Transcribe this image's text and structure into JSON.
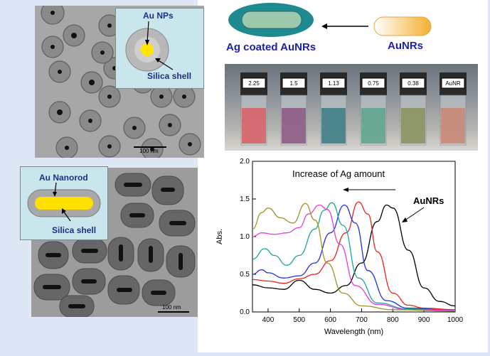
{
  "tem_top": {
    "inset_labels": [
      "Au NPs",
      "Silica shell"
    ],
    "scale_label": "100 nm"
  },
  "tem_bottom": {
    "inset_labels": [
      "Au Nanorod",
      "Silica shell"
    ],
    "scale_label": "100 nm"
  },
  "schematic": {
    "left_label": "Ag coated AuNRs",
    "right_label": "AuNRs"
  },
  "vials": {
    "labels": [
      "2.25",
      "1.5",
      "1.13",
      "0.75",
      "0.38",
      "AuNR"
    ],
    "colors": [
      "#d7646a",
      "#8e5c86",
      "#3f7f86",
      "#5fa58e",
      "#8a9460",
      "#c98777"
    ]
  },
  "chart_data": {
    "type": "line",
    "xlabel": "Wavelength (nm)",
    "ylabel": "Abs.",
    "xlim": [
      350,
      1000
    ],
    "ylim": [
      0.0,
      2.0
    ],
    "xticks": [
      400,
      500,
      600,
      700,
      800,
      900,
      1000
    ],
    "yticks": [
      0.0,
      0.5,
      1.0,
      1.5,
      2.0
    ],
    "ytick_labels": [
      "0.0",
      "0.5",
      "1.0",
      "1.5",
      "2.0"
    ],
    "annotations": [
      "Increase of Ag amount",
      "AuNRs"
    ],
    "series": [
      {
        "color": "#000000",
        "x": [
          350,
          400,
          450,
          500,
          550,
          600,
          650,
          700,
          750,
          780,
          800,
          850,
          900,
          950,
          1000
        ],
        "y": [
          0.36,
          0.32,
          0.3,
          0.42,
          0.3,
          0.25,
          0.35,
          0.65,
          1.2,
          1.42,
          1.38,
          0.82,
          0.32,
          0.14,
          0.08
        ]
      },
      {
        "color": "#e8231f",
        "x": [
          350,
          400,
          450,
          500,
          550,
          600,
          650,
          690,
          720,
          750,
          800,
          850,
          900,
          1000
        ],
        "y": [
          0.43,
          0.41,
          0.38,
          0.44,
          0.5,
          0.68,
          1.05,
          1.46,
          1.3,
          0.8,
          0.25,
          0.09,
          0.05,
          0.03
        ]
      },
      {
        "color": "#1f2ee0",
        "x": [
          350,
          380,
          400,
          450,
          500,
          550,
          600,
          645,
          680,
          720,
          780,
          850,
          1000
        ],
        "y": [
          0.5,
          0.56,
          0.52,
          0.45,
          0.48,
          0.65,
          1.05,
          1.42,
          1.18,
          0.55,
          0.15,
          0.05,
          0.02
        ]
      },
      {
        "color": "#1aa69b",
        "x": [
          350,
          390,
          420,
          460,
          500,
          550,
          580,
          605,
          640,
          690,
          750,
          850,
          1000
        ],
        "y": [
          0.7,
          0.84,
          0.75,
          0.62,
          0.75,
          1.1,
          1.35,
          1.45,
          1.15,
          0.45,
          0.12,
          0.04,
          0.02
        ]
      },
      {
        "color": "#e83ad8",
        "x": [
          350,
          380,
          420,
          460,
          500,
          530,
          565,
          590,
          630,
          680,
          750,
          850,
          1000
        ],
        "y": [
          1.0,
          1.05,
          1.03,
          1.05,
          1.12,
          1.3,
          1.42,
          1.36,
          0.9,
          0.35,
          0.1,
          0.03,
          0.02
        ]
      },
      {
        "color": "#9a9622",
        "x": [
          350,
          380,
          400,
          440,
          480,
          520,
          550,
          590,
          640,
          700,
          800,
          1000
        ],
        "y": [
          1.1,
          1.32,
          1.38,
          1.25,
          1.18,
          1.44,
          1.22,
          0.65,
          0.25,
          0.08,
          0.03,
          0.01
        ]
      }
    ]
  },
  "colors": {
    "label_blue": "#1a23a8",
    "inset_text": "#1f2f86",
    "panel_bg": "#dde7f6"
  }
}
